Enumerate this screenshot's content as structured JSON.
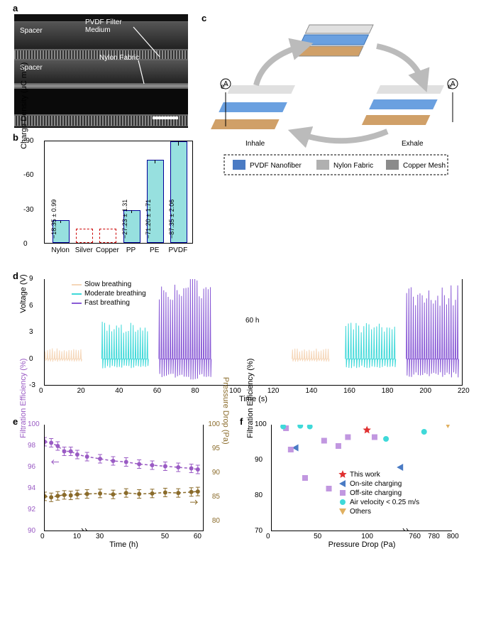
{
  "panels": {
    "a": "a",
    "b": "b",
    "c": "c",
    "d": "d",
    "e": "e",
    "f": "f"
  },
  "a": {
    "labels": {
      "spacer": "Spacer",
      "pvdf": "PVDF Filter\nMedium",
      "nylon": "Nylon Fabric"
    }
  },
  "b": {
    "ytitle": "Charge Density (μC m⁻²)",
    "ylim": [
      0,
      -90
    ],
    "yticks": [
      0,
      -30,
      -60,
      -90
    ],
    "categories": [
      "Nylon",
      "Silver",
      "Copper",
      "PP",
      "PE",
      "PVDF"
    ],
    "values": [
      -18.35,
      0,
      0,
      -27.23,
      -71.2,
      -87.35
    ],
    "errors": [
      0.99,
      0,
      0,
      1.31,
      1.71,
      2.06
    ],
    "dashed": [
      false,
      true,
      true,
      false,
      false,
      false
    ],
    "barlabels": [
      "−18.35 ± 0.99",
      "",
      "",
      "−27.23 ± 1.31",
      "−71.20 ± 1.71",
      "−87.35 ± 2.06"
    ],
    "bar_color": "#97e0df",
    "edge_color": "#1a1a8a",
    "dash_color": "#c00000"
  },
  "c": {
    "legend": [
      "PVDF Nanofiber",
      "Nylon Fabric",
      "Copper Mesh"
    ],
    "legend_colors": [
      "#4a7bc4",
      "#b0b0b0",
      "#8b8b8b"
    ],
    "cycle_labels": {
      "inhale": "Inhale",
      "exhale": "Exhale",
      "e": "e⁻"
    }
  },
  "d": {
    "ytitle": "Voltage (V)",
    "xtitle": "Time (s)",
    "xlim": [
      0,
      220
    ],
    "xticks": [
      0,
      20,
      40,
      60,
      80,
      100,
      120,
      140,
      160,
      180,
      200,
      220
    ],
    "ylim": [
      -3,
      9
    ],
    "yticks": [
      -3,
      0,
      3,
      6,
      9
    ],
    "legend": [
      {
        "label": "Slow breathing",
        "color": "#f5d6b8"
      },
      {
        "label": "Moderate breathing",
        "color": "#3fd9d9"
      },
      {
        "label": "Fast breathing",
        "color": "#8a5bd6"
      }
    ],
    "gap_label": "60 h",
    "segments": [
      {
        "x": [
          0,
          20
        ],
        "amp": 1.2,
        "color": "#f5d6b8",
        "n": 16
      },
      {
        "x": [
          30,
          55
        ],
        "amp": 4.2,
        "color": "#3fd9d9",
        "n": 20
      },
      {
        "x": [
          60,
          88
        ],
        "amp": 9.5,
        "color": "#8a5bd6",
        "n": 24
      },
      {
        "x": [
          130,
          150
        ],
        "amp": 1.2,
        "color": "#f5d6b8",
        "n": 16
      },
      {
        "x": [
          158,
          185
        ],
        "amp": 4.2,
        "color": "#3fd9d9",
        "n": 20
      },
      {
        "x": [
          190,
          218
        ],
        "amp": 8.5,
        "color": "#8a5bd6",
        "n": 24
      }
    ]
  },
  "e": {
    "ytitle_l": "Filtration Efficiency (%)",
    "ytitle_r": "Pressure Drop (Pa)",
    "xtitle": "Time (h)",
    "xlim": [
      0,
      62
    ],
    "xticks": [
      0,
      10,
      30,
      50,
      60
    ],
    "xbreak": [
      12,
      25
    ],
    "ylim_l": [
      90,
      100
    ],
    "yticks_l": [
      90,
      92,
      94,
      96,
      98,
      100
    ],
    "ylim_r": [
      78,
      100
    ],
    "yticks_r": [
      80,
      85,
      90,
      95,
      100
    ],
    "series": [
      {
        "name": "efficiency",
        "color": "#9a5bc4",
        "axis": "l",
        "x": [
          0,
          2,
          4,
          6,
          8,
          10,
          26,
          30,
          34,
          38,
          42,
          46,
          50,
          54,
          58,
          60
        ],
        "y": [
          98.4,
          98.3,
          98.0,
          97.5,
          97.5,
          97.2,
          97.0,
          96.8,
          96.6,
          96.5,
          96.3,
          96.2,
          96.1,
          96.0,
          95.9,
          95.8
        ],
        "err": 0.6
      },
      {
        "name": "pressure",
        "color": "#8a6b2a",
        "axis": "r",
        "x": [
          0,
          2,
          4,
          6,
          8,
          10,
          26,
          30,
          34,
          38,
          42,
          46,
          50,
          54,
          58,
          60
        ],
        "y": [
          85.2,
          85.0,
          85.3,
          85.5,
          85.4,
          85.6,
          85.7,
          85.8,
          85.6,
          85.9,
          85.7,
          85.8,
          86.0,
          85.9,
          86.1,
          86.2
        ],
        "err": 1.2
      }
    ]
  },
  "f": {
    "ytitle": "Filtration Efficiency (%)",
    "xtitle": "Pressure Drop (Pa)",
    "xlim": [
      0,
      800
    ],
    "xticks": [
      0,
      50,
      100,
      760,
      780,
      800
    ],
    "xbreak": [
      140,
      750
    ],
    "ylim": [
      70,
      100
    ],
    "yticks": [
      70,
      80,
      90,
      100
    ],
    "legend": [
      {
        "label": "This work",
        "color": "#e03030",
        "marker": "star"
      },
      {
        "label": "On-site charging",
        "color": "#4a7bc4",
        "marker": "tri-l"
      },
      {
        "label": "Off-site charging",
        "color": "#c197e0",
        "marker": "sq"
      },
      {
        "label": "Air velocity < 0.25 m/s",
        "color": "#3fd9d9",
        "marker": "circ"
      },
      {
        "label": "Others",
        "color": "#e0b060",
        "marker": "tri-d"
      }
    ],
    "points": [
      {
        "x": 100,
        "y": 98.5,
        "m": "star",
        "c": "#e03030"
      },
      {
        "x": 25,
        "y": 93.5,
        "m": "tri-l",
        "c": "#4a7bc4"
      },
      {
        "x": 135,
        "y": 88,
        "m": "tri-l",
        "c": "#4a7bc4"
      },
      {
        "x": 15,
        "y": 99,
        "m": "sq",
        "c": "#c197e0"
      },
      {
        "x": 20,
        "y": 93,
        "m": "sq",
        "c": "#c197e0"
      },
      {
        "x": 35,
        "y": 85,
        "m": "sq",
        "c": "#c197e0"
      },
      {
        "x": 55,
        "y": 95.5,
        "m": "sq",
        "c": "#c197e0"
      },
      {
        "x": 60,
        "y": 82,
        "m": "sq",
        "c": "#c197e0"
      },
      {
        "x": 70,
        "y": 94,
        "m": "sq",
        "c": "#c197e0"
      },
      {
        "x": 80,
        "y": 96.5,
        "m": "sq",
        "c": "#c197e0"
      },
      {
        "x": 108,
        "y": 96.5,
        "m": "sq",
        "c": "#c197e0"
      },
      {
        "x": 12,
        "y": 99.5,
        "m": "circ",
        "c": "#3fd9d9"
      },
      {
        "x": 30,
        "y": 99.7,
        "m": "circ",
        "c": "#3fd9d9"
      },
      {
        "x": 40,
        "y": 99.5,
        "m": "circ",
        "c": "#3fd9d9"
      },
      {
        "x": 120,
        "y": 96,
        "m": "circ",
        "c": "#3fd9d9"
      },
      {
        "x": 770,
        "y": 98,
        "m": "circ",
        "c": "#3fd9d9"
      },
      {
        "x": 795,
        "y": 100,
        "m": "tri-d",
        "c": "#e0b060"
      }
    ]
  }
}
